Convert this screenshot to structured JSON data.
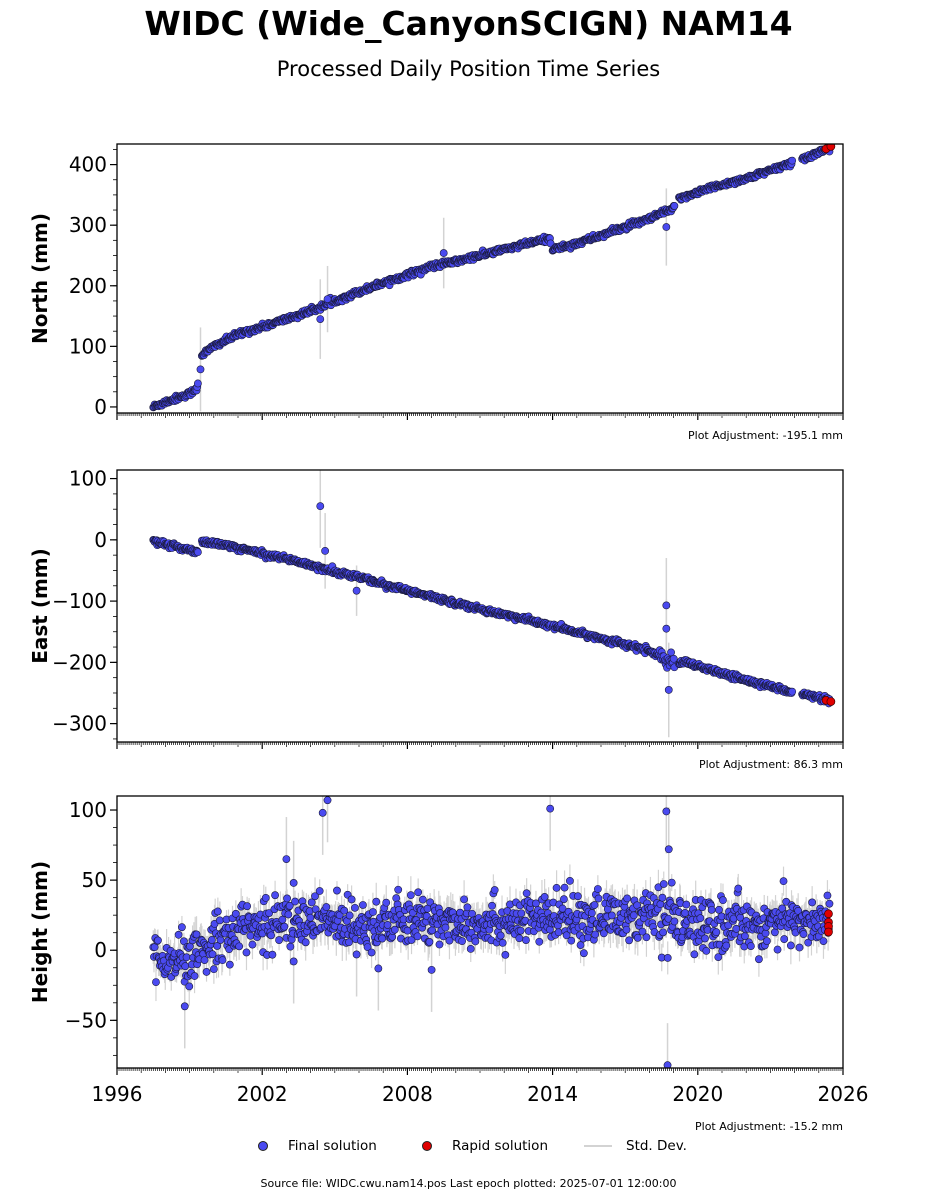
{
  "header": {
    "title": "WIDC (Wide_CanyonSCIGN) NAM14",
    "subtitle": "Processed Daily Position Time Series"
  },
  "legend": {
    "final": "Final solution",
    "rapid": "Rapid solution",
    "stddev": "Std. Dev."
  },
  "footer": "Source file: WIDC.cwu.nam14.pos  Last epoch plotted: 2025-07-01 12:00:00",
  "colors": {
    "final": "#4a4af0",
    "rapid": "#e00000",
    "stddev": "#d3d3d3"
  },
  "chart_data": [
    {
      "type": "scatter",
      "ylabel": "North (mm)",
      "adjustment": "Plot Adjustment: -195.1 mm",
      "xlim": [
        1996,
        2026
      ],
      "ylim": [
        -10,
        434
      ],
      "yticks": [
        0,
        100,
        200,
        300,
        400
      ],
      "ytick_labels": [
        "0",
        "100",
        "200",
        "300",
        "400"
      ],
      "series": [
        {
          "name": "Final solution",
          "x": [
            1997.5,
            1998.0,
            1998.5,
            1999.0,
            1999.2,
            1999.3,
            1999.5,
            2000.0,
            2001.0,
            2002.0,
            2003.0,
            2004.0,
            2005.0,
            2006.0,
            2007.0,
            2008.0,
            2009.0,
            2010.0,
            2011.0,
            2012.0,
            2013.0,
            2013.9,
            2014.0,
            2015.0,
            2016.0,
            2017.0,
            2018.0,
            2018.5,
            2018.9,
            2019.2,
            2019.5,
            2020.0,
            2021.0,
            2022.0,
            2023.0,
            2024.0,
            2024.5,
            2025.0,
            2025.45
          ],
          "y": [
            0,
            8,
            15,
            22,
            28,
            30,
            85,
            100,
            120,
            132,
            145,
            158,
            175,
            190,
            205,
            218,
            232,
            240,
            250,
            260,
            270,
            278,
            260,
            270,
            283,
            297,
            310,
            320,
            325,
            340,
            348,
            355,
            367,
            377,
            390,
            405,
            412,
            420,
            428
          ]
        },
        {
          "name": "Rapid solution",
          "x": [
            2025.3,
            2025.5
          ],
          "y": [
            426,
            430
          ]
        }
      ],
      "outliers": [
        [
          2004.4,
          145
        ],
        [
          2004.7,
          178
        ],
        [
          2009.5,
          254
        ],
        [
          1999.45,
          62
        ],
        [
          2018.7,
          297
        ]
      ]
    },
    {
      "type": "scatter",
      "ylabel": "East (mm)",
      "adjustment": "Plot Adjustment: 86.3 mm",
      "xlim": [
        1996,
        2026
      ],
      "ylim": [
        -330,
        114
      ],
      "yticks": [
        -300,
        -200,
        -100,
        0,
        100
      ],
      "ytick_labels": [
        "−300",
        "−200",
        "−100",
        "0",
        "100"
      ],
      "series": [
        {
          "name": "Final solution",
          "x": [
            1997.5,
            1998.0,
            1998.5,
            1999.0,
            1999.4,
            1999.5,
            2000.0,
            2001.0,
            2002.0,
            2003.0,
            2004.0,
            2005.0,
            2006.0,
            2007.0,
            2008.0,
            2009.0,
            2010.0,
            2011.0,
            2012.0,
            2013.0,
            2014.0,
            2015.0,
            2016.0,
            2017.0,
            2018.0,
            2018.7,
            2019.0,
            2019.5,
            2020.0,
            2021.0,
            2022.0,
            2023.0,
            2024.0,
            2025.0,
            2025.45
          ],
          "y": [
            0,
            -8,
            -12,
            -16,
            -20,
            -2,
            -6,
            -13,
            -22,
            -31,
            -41,
            -52,
            -61,
            -72,
            -83,
            -93,
            -103,
            -113,
            -122,
            -131,
            -141,
            -151,
            -161,
            -171,
            -181,
            -195,
            -205,
            -200,
            -207,
            -218,
            -229,
            -239,
            -249,
            -258,
            -263
          ]
        },
        {
          "name": "Rapid solution",
          "x": [
            2025.3,
            2025.5
          ],
          "y": [
            -262,
            -264
          ]
        }
      ],
      "outliers": [
        [
          2004.4,
          55
        ],
        [
          2004.6,
          -18
        ],
        [
          2005.9,
          -83
        ],
        [
          2018.7,
          -107
        ],
        [
          2018.7,
          -145
        ],
        [
          2018.8,
          -245
        ]
      ]
    },
    {
      "type": "scatter",
      "ylabel": "Height (mm)",
      "adjustment": "Plot Adjustment: -15.2 mm",
      "xlim": [
        1996,
        2026
      ],
      "xticks": [
        1996,
        2002,
        2008,
        2014,
        2020,
        2026
      ],
      "xtick_labels": [
        "1996",
        "2002",
        "2008",
        "2014",
        "2020",
        "2026"
      ],
      "ylim": [
        -84,
        110
      ],
      "yticks": [
        -50,
        0,
        50,
        100
      ],
      "ytick_labels": [
        "−50",
        "0",
        "50",
        "100"
      ],
      "series": [
        {
          "name": "Final solution",
          "x": [
            1997.5,
            1998.0,
            1998.5,
            1999.0,
            1999.5,
            2000.0,
            2000.5,
            2001.0,
            2002.0,
            2003.0,
            2004.0,
            2005.0,
            2006.0,
            2007.0,
            2008.0,
            2009.0,
            2010.0,
            2011.0,
            2012.0,
            2013.0,
            2014.0,
            2015.0,
            2016.0,
            2017.0,
            2018.0,
            2018.8,
            2019.5,
            2020.0,
            2021.0,
            2022.0,
            2023.0,
            2024.0,
            2025.0,
            2025.45
          ],
          "y": [
            -10,
            -12,
            -8,
            -10,
            0,
            8,
            12,
            15,
            18,
            20,
            21,
            20,
            20,
            19,
            20,
            20,
            21,
            20,
            21,
            21,
            22,
            23,
            23,
            24,
            24,
            20,
            18,
            17,
            18,
            19,
            19,
            20,
            20,
            20
          ]
        },
        {
          "name": "Rapid solution",
          "x": [
            2025.4,
            2025.4,
            2025.4,
            2025.4
          ],
          "y": [
            26,
            20,
            17,
            13
          ]
        }
      ],
      "outliers": [
        [
          2003.0,
          65
        ],
        [
          2003.3,
          48
        ],
        [
          2004.5,
          98
        ],
        [
          2004.7,
          107
        ],
        [
          2013.9,
          101
        ],
        [
          2018.7,
          99
        ],
        [
          2018.8,
          72
        ],
        [
          2018.75,
          -82
        ],
        [
          2009.0,
          -14
        ],
        [
          2006.8,
          -13
        ],
        [
          1998.8,
          -40
        ],
        [
          2003.3,
          -8
        ],
        [
          2005.9,
          -3
        ]
      ]
    }
  ]
}
